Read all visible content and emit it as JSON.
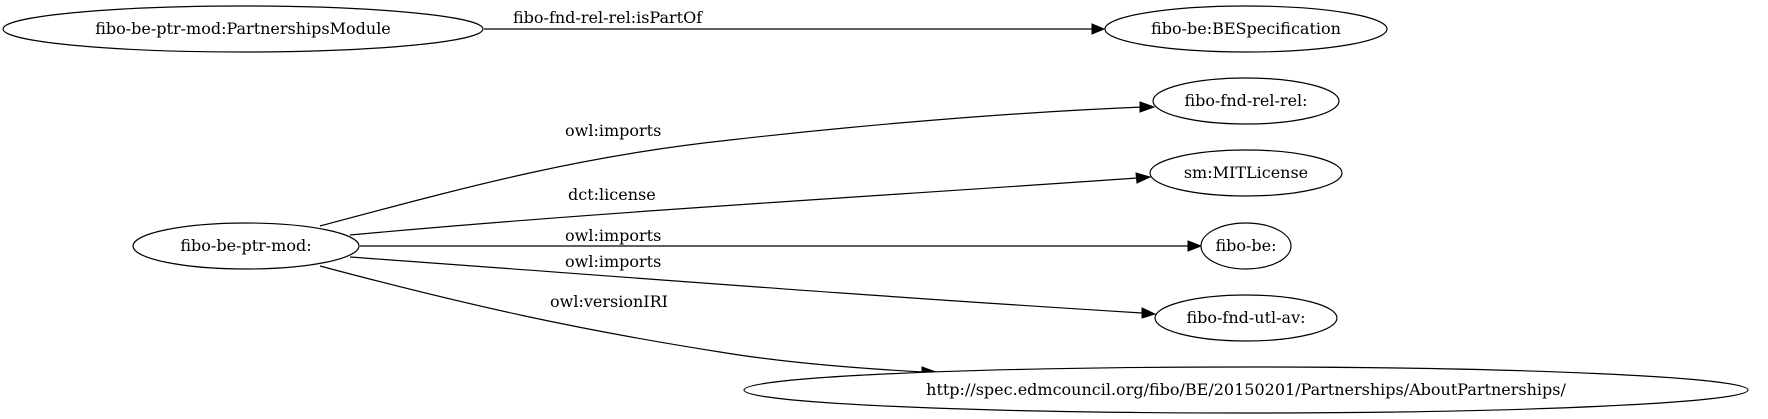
{
  "diagram": {
    "nodes": {
      "partnerships_module": "fibo-be-ptr-mod:PartnershipsModule",
      "be_specification": "fibo-be:BESpecification",
      "ptr_mod": "fibo-be-ptr-mod:",
      "rel_rel": "fibo-fnd-rel-rel:",
      "mit_license": "sm:MITLicense",
      "fibo_be": "fibo-be:",
      "utl_av": "fibo-fnd-utl-av:",
      "version_iri": "http://spec.edmcouncil.org/fibo/BE/20150201/Partnerships/AboutPartnerships/"
    },
    "edges": {
      "is_part_of": "fibo-fnd-rel-rel:isPartOf",
      "imports_rel_rel": "owl:imports",
      "license": "dct:license",
      "imports_fibo_be": "owl:imports",
      "imports_utl_av": "owl:imports",
      "version_iri": "owl:versionIRI"
    }
  }
}
